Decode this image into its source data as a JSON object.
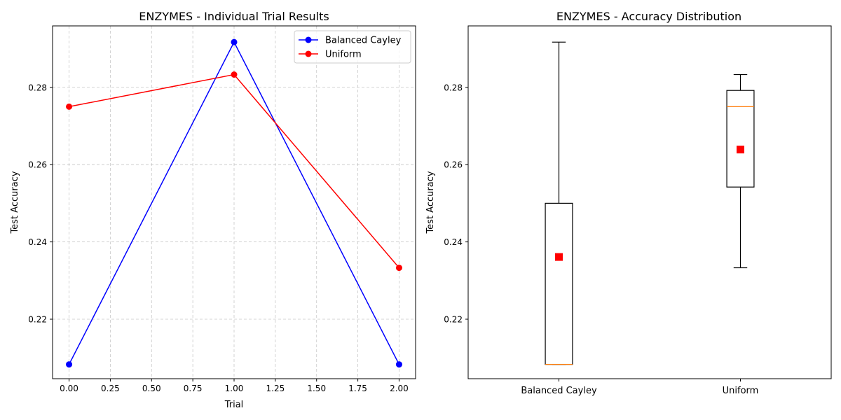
{
  "chart_data": [
    {
      "type": "line",
      "title": "ENZYMES - Individual Trial Results",
      "xlabel": "Trial",
      "ylabel": "Test Accuracy",
      "xlim": [
        -0.1,
        2.1
      ],
      "ylim": [
        0.2046,
        0.2959
      ],
      "xticks": [
        0.0,
        0.25,
        0.5,
        0.75,
        1.0,
        1.25,
        1.5,
        1.75,
        2.0
      ],
      "xtick_labels": [
        "0.00",
        "0.25",
        "0.50",
        "0.75",
        "1.00",
        "1.25",
        "1.50",
        "1.75",
        "2.00"
      ],
      "yticks": [
        0.22,
        0.24,
        0.26,
        0.28
      ],
      "ytick_labels": [
        "0.22",
        "0.24",
        "0.26",
        "0.28"
      ],
      "grid": true,
      "legend_position": "top-right",
      "x": [
        0,
        1,
        2
      ],
      "series": [
        {
          "name": "Balanced Cayley",
          "color": "#0000ff",
          "values": [
            0.2083,
            0.2917,
            0.2083
          ]
        },
        {
          "name": "Uniform",
          "color": "#ff0000",
          "values": [
            0.275,
            0.2833,
            0.2333
          ]
        }
      ]
    },
    {
      "type": "box",
      "title": "ENZYMES - Accuracy Distribution",
      "xlabel": "",
      "ylabel": "Test Accuracy",
      "ylim": [
        0.2046,
        0.2959
      ],
      "yticks": [
        0.22,
        0.24,
        0.26,
        0.28
      ],
      "ytick_labels": [
        "0.22",
        "0.24",
        "0.26",
        "0.28"
      ],
      "grid": false,
      "categories": [
        "Balanced Cayley",
        "Uniform"
      ],
      "boxes": [
        {
          "whisker_low": 0.2083,
          "q1": 0.2083,
          "median": 0.2083,
          "q3": 0.25,
          "whisker_high": 0.2917,
          "mean": 0.2361
        },
        {
          "whisker_low": 0.2333,
          "q1": 0.2542,
          "median": 0.275,
          "q3": 0.2792,
          "whisker_high": 0.2833,
          "mean": 0.2639
        }
      ],
      "median_color": "#ff7f0e",
      "mean_color": "#ff0000"
    }
  ]
}
